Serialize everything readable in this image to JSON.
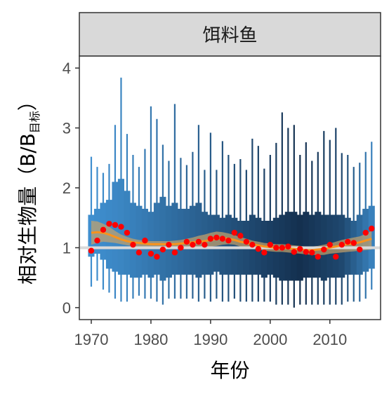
{
  "chart_data": {
    "type": "box-time-series",
    "panel_title": "饵料鱼",
    "xlabel": "年份",
    "ylabel": "相对生物量（B/B",
    "ylabel_subscript": "目标",
    "ylabel_close": "）",
    "x_ticks": [
      1970,
      1980,
      1990,
      2000,
      2010
    ],
    "y_ticks": [
      0,
      1,
      2,
      3,
      4
    ],
    "xlim": [
      1968,
      2018.5
    ],
    "ylim": [
      -0.2,
      4.2
    ],
    "reference_line": 1,
    "years": [
      1970,
      1971,
      1972,
      1973,
      1974,
      1975,
      1976,
      1977,
      1978,
      1979,
      1980,
      1981,
      1982,
      1983,
      1984,
      1985,
      1986,
      1987,
      1988,
      1989,
      1990,
      1991,
      1992,
      1993,
      1994,
      1995,
      1996,
      1997,
      1998,
      1999,
      2000,
      2001,
      2002,
      2003,
      2004,
      2005,
      2006,
      2007,
      2008,
      2009,
      2010,
      2011,
      2012,
      2013,
      2014,
      2015,
      2016,
      2017
    ],
    "whisker_high": [
      2.52,
      2.35,
      2.25,
      2.4,
      3.05,
      3.84,
      2.9,
      2.55,
      2.35,
      2.65,
      3.36,
      3.15,
      2.72,
      2.45,
      3.4,
      2.5,
      2.38,
      2.6,
      3.05,
      2.3,
      2.92,
      2.3,
      2.78,
      2.55,
      2.4,
      2.48,
      2.3,
      2.82,
      2.7,
      2.32,
      2.55,
      2.75,
      3.26,
      3.0,
      3.05,
      2.55,
      2.76,
      2.45,
      2.6,
      2.95,
      2.8,
      3.0,
      2.58,
      2.55,
      2.35,
      2.42,
      2.6,
      2.77
    ],
    "box_high": [
      1.55,
      1.65,
      1.75,
      1.8,
      2.1,
      2.15,
      1.95,
      1.75,
      1.7,
      1.65,
      1.6,
      1.75,
      1.85,
      1.7,
      1.75,
      1.65,
      1.65,
      1.7,
      1.75,
      1.6,
      1.55,
      1.55,
      1.5,
      1.55,
      1.5,
      1.45,
      1.45,
      1.55,
      1.5,
      1.45,
      1.45,
      1.5,
      1.55,
      1.6,
      1.6,
      1.55,
      1.6,
      1.55,
      1.6,
      1.55,
      1.55,
      1.55,
      1.55,
      1.5,
      1.45,
      1.55,
      1.65,
      1.7
    ],
    "box_low": [
      0.85,
      0.9,
      0.8,
      0.65,
      0.6,
      0.55,
      0.55,
      0.5,
      0.5,
      0.55,
      0.5,
      0.55,
      0.45,
      0.5,
      0.55,
      0.55,
      0.55,
      0.55,
      0.5,
      0.55,
      0.55,
      0.6,
      0.55,
      0.55,
      0.55,
      0.55,
      0.55,
      0.55,
      0.55,
      0.5,
      0.55,
      0.5,
      0.45,
      0.45,
      0.45,
      0.45,
      0.5,
      0.5,
      0.5,
      0.45,
      0.5,
      0.5,
      0.5,
      0.55,
      0.55,
      0.55,
      0.6,
      0.65
    ],
    "whisker_low": [
      0.35,
      0.45,
      0.3,
      0.25,
      0.15,
      0.1,
      0.1,
      0.15,
      0.2,
      0.15,
      0.15,
      0.1,
      0.05,
      0.15,
      0.15,
      0.15,
      0.15,
      0.15,
      0.1,
      0.15,
      0.1,
      0.15,
      0.1,
      0.1,
      0.15,
      0.1,
      0.1,
      0.1,
      0.1,
      0.1,
      0.1,
      0.05,
      0.05,
      0.05,
      0.0,
      0.05,
      0.05,
      0.05,
      0.05,
      0.05,
      0.05,
      0.05,
      0.05,
      0.1,
      0.1,
      0.1,
      0.15,
      0.3
    ],
    "observed": [
      0.95,
      1.12,
      1.3,
      1.4,
      1.38,
      1.35,
      1.25,
      1.05,
      0.92,
      1.12,
      0.9,
      0.85,
      0.97,
      1.05,
      0.92,
      1.0,
      1.1,
      1.05,
      1.1,
      1.05,
      1.15,
      1.17,
      1.15,
      1.12,
      1.25,
      1.2,
      1.1,
      1.05,
      0.98,
      0.92,
      1.05,
      1.0,
      1.0,
      1.02,
      0.93,
      0.98,
      0.93,
      0.92,
      0.85,
      0.97,
      1.05,
      0.85,
      1.05,
      1.1,
      1.08,
      0.97,
      1.25,
      1.32
    ],
    "trend": [
      1.25,
      1.26,
      1.25,
      1.22,
      1.18,
      1.14,
      1.11,
      1.09,
      1.08,
      1.07,
      1.06,
      1.06,
      1.06,
      1.06,
      1.06,
      1.07,
      1.08,
      1.09,
      1.1,
      1.11,
      1.13,
      1.15,
      1.16,
      1.15,
      1.13,
      1.1,
      1.08,
      1.06,
      1.04,
      1.02,
      1.01,
      1.0,
      1.0,
      0.99,
      0.98,
      0.97,
      0.96,
      0.96,
      0.97,
      0.98,
      1.0,
      1.02,
      1.04,
      1.06,
      1.07,
      1.09,
      1.12,
      1.15
    ],
    "band_high": [
      1.45,
      1.44,
      1.4,
      1.35,
      1.28,
      1.22,
      1.18,
      1.15,
      1.13,
      1.12,
      1.11,
      1.11,
      1.11,
      1.11,
      1.12,
      1.13,
      1.15,
      1.17,
      1.2,
      1.22,
      1.25,
      1.27,
      1.26,
      1.24,
      1.21,
      1.18,
      1.15,
      1.12,
      1.1,
      1.08,
      1.07,
      1.06,
      1.06,
      1.05,
      1.04,
      1.03,
      1.02,
      1.02,
      1.03,
      1.05,
      1.07,
      1.1,
      1.13,
      1.15,
      1.17,
      1.19,
      1.23,
      1.28
    ],
    "band_low": [
      1.05,
      1.08,
      1.1,
      1.09,
      1.08,
      1.06,
      1.04,
      1.03,
      1.02,
      1.01,
      1.0,
      1.0,
      1.0,
      1.0,
      1.0,
      1.01,
      1.01,
      1.01,
      1.01,
      1.01,
      1.02,
      1.03,
      1.05,
      1.06,
      1.05,
      1.02,
      1.0,
      0.99,
      0.97,
      0.95,
      0.94,
      0.93,
      0.93,
      0.92,
      0.91,
      0.9,
      0.89,
      0.88,
      0.88,
      0.88,
      0.9,
      0.91,
      0.92,
      0.93,
      0.94,
      0.95,
      0.96,
      0.97
    ],
    "colors": {
      "box_light": "#3f8fcf",
      "box_dark": "#14304f",
      "trend_line": "#f7931e",
      "band": "#c8a26a",
      "points": "#ff0000",
      "reference_line": "#d9d9d9",
      "strip_fill": "#d9d9d9",
      "panel_border": "#333333",
      "grid": "none"
    },
    "grid": false,
    "legend": "none"
  }
}
